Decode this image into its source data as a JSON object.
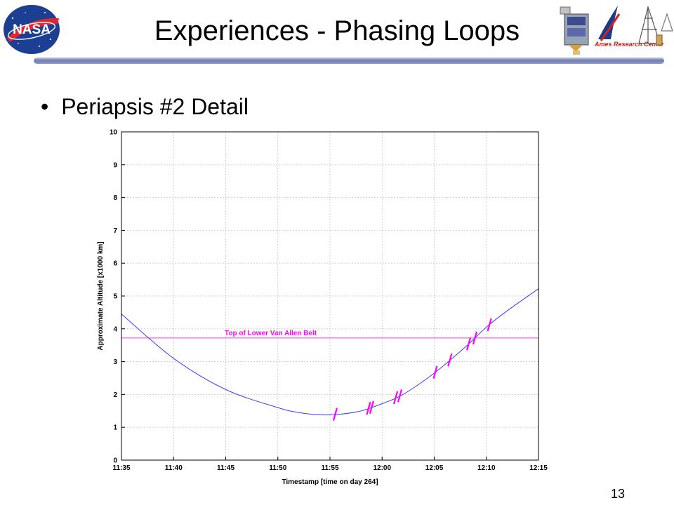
{
  "slide": {
    "title": "Experiences - Phasing Loops",
    "bullet": "Periapsis #2 Detail",
    "page_number": "13",
    "logos": [
      "nasa-logo",
      "spacecraft-logo",
      "ames-research-center-logo",
      "tower-logo"
    ],
    "logo_text": "Ames Research Center"
  },
  "chart_data": {
    "type": "line",
    "xlabel": "Timestamp [time on day 264]",
    "ylabel": "Approximate Altitude [x1000 km]",
    "x_ticks": [
      "11:35",
      "11:40",
      "11:45",
      "11:50",
      "11:55",
      "12:00",
      "12:05",
      "12:10",
      "12:15"
    ],
    "xlim": [
      "11:35",
      "12:15"
    ],
    "ylim": [
      0,
      10
    ],
    "y_ticks": [
      0,
      1,
      2,
      3,
      4,
      5,
      6,
      7,
      8,
      9,
      10
    ],
    "grid": true,
    "series": [
      {
        "color": "#3a3aff",
        "x": [
          "11:35",
          "11:40",
          "11:45",
          "11:50",
          "11:52",
          "11:54",
          "11:56",
          "11:58",
          "12:00",
          "12:02",
          "12:05",
          "12:08",
          "12:10",
          "12:12",
          "12:15"
        ],
        "y": [
          4.45,
          3.1,
          2.15,
          1.6,
          1.45,
          1.38,
          1.4,
          1.5,
          1.72,
          2.0,
          2.65,
          3.45,
          4.05,
          4.55,
          5.22
        ]
      }
    ],
    "reference_line": {
      "label": "Top of Lower Van Allen Belt",
      "y": 3.72,
      "color": "#ff33ff"
    },
    "markers": {
      "color": "#ff00ff",
      "x": [
        "11:55.5",
        "11:58.7",
        "11:59.0",
        "12:01.3",
        "12:01.7",
        "12:05.1",
        "12:06.5",
        "12:08.3",
        "12:08.9",
        "12:10.3"
      ]
    }
  }
}
